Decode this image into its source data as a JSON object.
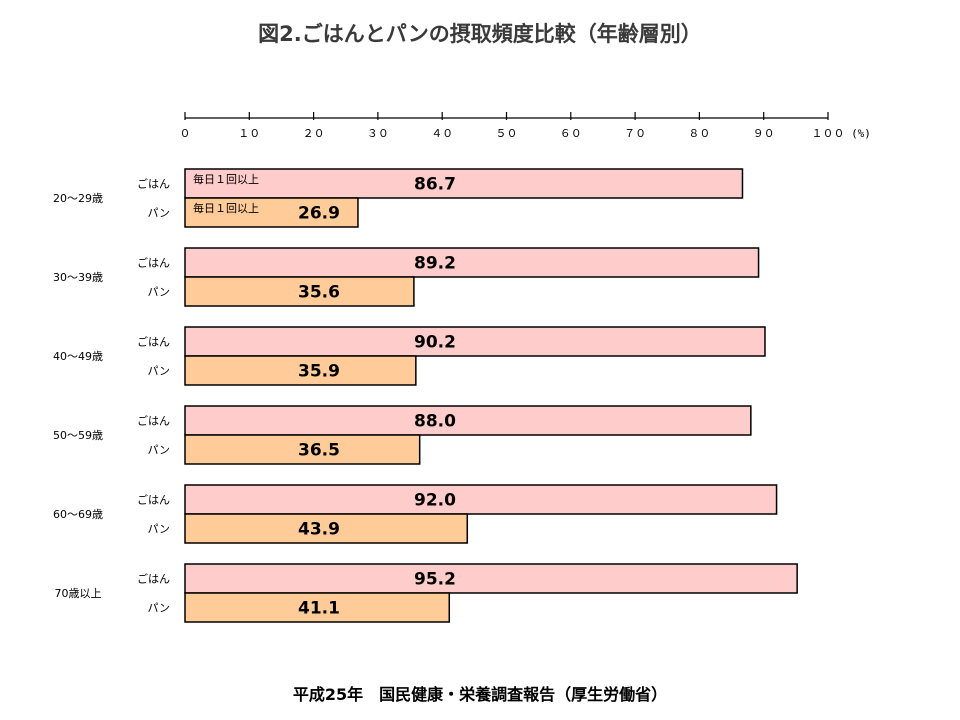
{
  "title": "図2.ごはんとパンの摂取頻度比較（年齢層別）",
  "source": "平成25年　国民健康・栄養調査報告（厚生労働省）",
  "chart_data": {
    "type": "bar",
    "orientation": "horizontal",
    "categories": [
      "20～29歳",
      "30～39歳",
      "40～49歳",
      "50～59歳",
      "60～69歳",
      "70歳以上"
    ],
    "series": [
      {
        "name": "ごはん",
        "values": [
          86.7,
          89.2,
          90.2,
          88.0,
          92.0,
          95.2
        ],
        "color": "#ffcccc"
      },
      {
        "name": "パン",
        "values": [
          26.9,
          35.6,
          35.9,
          36.5,
          43.9,
          41.1
        ],
        "color": "#ffcc99"
      }
    ],
    "value_labels": {
      "ごはん": [
        "86.7",
        "89.2",
        "90.2",
        "88.0",
        "92.0",
        "95.2"
      ],
      "パン": [
        "26.9",
        "35.6",
        "35.9",
        "36.5",
        "43.9",
        "41.1"
      ]
    },
    "xlim": [
      0,
      100
    ],
    "xticks": [
      "０",
      "１０",
      "２０",
      "３０",
      "４０",
      "５０",
      "６０",
      "７０",
      "８０",
      "９０",
      "１００"
    ],
    "unit": "(%)",
    "bar_note": "毎日１回以上",
    "axis_position": "top",
    "grid": false
  }
}
